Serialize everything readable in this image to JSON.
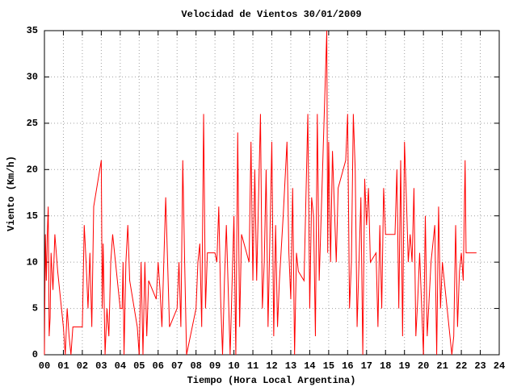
{
  "chart_data": {
    "type": "line",
    "title": "Velocidad de Vientos 30/01/2009",
    "xlabel": "Tiempo (Hora Local Argentina)",
    "ylabel": "Viento (Km/h)",
    "xlim": [
      0,
      24
    ],
    "ylim": [
      0,
      35
    ],
    "xticks": [
      {
        "value": 0,
        "label": "00"
      },
      {
        "value": 1,
        "label": "01"
      },
      {
        "value": 2,
        "label": "02"
      },
      {
        "value": 3,
        "label": "03"
      },
      {
        "value": 4,
        "label": "04"
      },
      {
        "value": 5,
        "label": "05"
      },
      {
        "value": 6,
        "label": "06"
      },
      {
        "value": 7,
        "label": "07"
      },
      {
        "value": 8,
        "label": "08"
      },
      {
        "value": 9,
        "label": "09"
      },
      {
        "value": 10,
        "label": "10"
      },
      {
        "value": 11,
        "label": "11"
      },
      {
        "value": 12,
        "label": "12"
      },
      {
        "value": 13,
        "label": "13"
      },
      {
        "value": 14,
        "label": "14"
      },
      {
        "value": 15,
        "label": "15"
      },
      {
        "value": 16,
        "label": "16"
      },
      {
        "value": 17,
        "label": "17"
      },
      {
        "value": 18,
        "label": "18"
      },
      {
        "value": 19,
        "label": "19"
      },
      {
        "value": 20,
        "label": "20"
      },
      {
        "value": 21,
        "label": "21"
      },
      {
        "value": 22,
        "label": "22"
      },
      {
        "value": 23,
        "label": "23"
      },
      {
        "value": 24,
        "label": "24"
      }
    ],
    "yticks": [
      0,
      5,
      10,
      15,
      20,
      25,
      30,
      35
    ],
    "grid": true,
    "color": "#ff0000",
    "x": [
      0.0,
      0.05,
      0.1,
      0.15,
      0.2,
      0.25,
      0.3,
      0.35,
      0.45,
      0.55,
      0.7,
      0.9,
      1.0,
      1.1,
      1.2,
      1.3,
      1.4,
      1.5,
      2.0,
      2.1,
      2.2,
      2.3,
      2.4,
      2.5,
      2.6,
      3.0,
      3.05,
      3.1,
      3.2,
      3.3,
      3.4,
      3.5,
      3.6,
      4.0,
      4.1,
      4.15,
      4.2,
      4.3,
      4.4,
      4.5,
      4.9,
      5.0,
      5.1,
      5.2,
      5.3,
      5.4,
      5.5,
      5.9,
      6.0,
      6.1,
      6.2,
      6.4,
      6.5,
      6.6,
      7.0,
      7.1,
      7.2,
      7.3,
      7.4,
      7.5,
      8.0,
      8.1,
      8.2,
      8.3,
      8.4,
      8.5,
      8.6,
      9.0,
      9.1,
      9.2,
      9.3,
      9.4,
      9.5,
      9.6,
      9.8,
      10.0,
      10.1,
      10.2,
      10.3,
      10.4,
      10.8,
      10.9,
      11.0,
      11.1,
      11.2,
      11.4,
      11.5,
      11.6,
      11.7,
      11.8,
      12.0,
      12.1,
      12.2,
      12.3,
      12.4,
      12.6,
      12.8,
      12.9,
      13.0,
      13.1,
      13.2,
      13.3,
      13.4,
      13.7,
      13.9,
      14.0,
      14.1,
      14.2,
      14.3,
      14.4,
      14.5,
      14.9,
      14.95,
      15.0,
      15.1,
      15.2,
      15.3,
      15.4,
      15.5,
      15.9,
      16.0,
      16.1,
      16.2,
      16.3,
      16.4,
      16.5,
      16.7,
      16.8,
      16.9,
      17.0,
      17.1,
      17.2,
      17.5,
      17.6,
      17.7,
      17.8,
      17.9,
      18.0,
      18.5,
      18.6,
      18.7,
      18.8,
      18.9,
      19.0,
      19.1,
      19.2,
      19.3,
      19.4,
      19.5,
      19.6,
      19.7,
      19.8,
      20.0,
      20.1,
      20.2,
      20.4,
      20.6,
      20.7,
      20.8,
      20.9,
      21.0,
      21.5,
      21.6,
      21.7,
      21.8,
      21.9,
      22.0,
      22.1,
      22.2,
      22.25,
      22.8
    ],
    "values": [
      0,
      13,
      8,
      13,
      16,
      2,
      4,
      11,
      7,
      13,
      9,
      5,
      3,
      0,
      5,
      2,
      0,
      3,
      3,
      14,
      10,
      5,
      11,
      3,
      16,
      21,
      5,
      12,
      0,
      5,
      2,
      10,
      13,
      5,
      5,
      10,
      0,
      10,
      14,
      8,
      3,
      0,
      10,
      0,
      10,
      2,
      8,
      6,
      10,
      7,
      3,
      17,
      10,
      3,
      5,
      10,
      3,
      21,
      10,
      0,
      5,
      10,
      12,
      3,
      26,
      5,
      11,
      11,
      10,
      16,
      6,
      0,
      8,
      14,
      0,
      15,
      0,
      24,
      3,
      13,
      10,
      23,
      8,
      20,
      8,
      26,
      5,
      10,
      20,
      3,
      23,
      2,
      14,
      3,
      8,
      15,
      23,
      11,
      6,
      18,
      0,
      11,
      9,
      8,
      26,
      5,
      17,
      15,
      2,
      26,
      8,
      35,
      11,
      23,
      10,
      22,
      16,
      10,
      18,
      21,
      26,
      5,
      10,
      26,
      20,
      3,
      17,
      0,
      19,
      14,
      18,
      10,
      11,
      3,
      14,
      5,
      18,
      13,
      13,
      20,
      5,
      21,
      2,
      23,
      17,
      10,
      13,
      10,
      18,
      2,
      6,
      11,
      0,
      15,
      2,
      10,
      14,
      0,
      16,
      5,
      10,
      0,
      2,
      14,
      3,
      9,
      11,
      8,
      21,
      11,
      11
    ]
  }
}
